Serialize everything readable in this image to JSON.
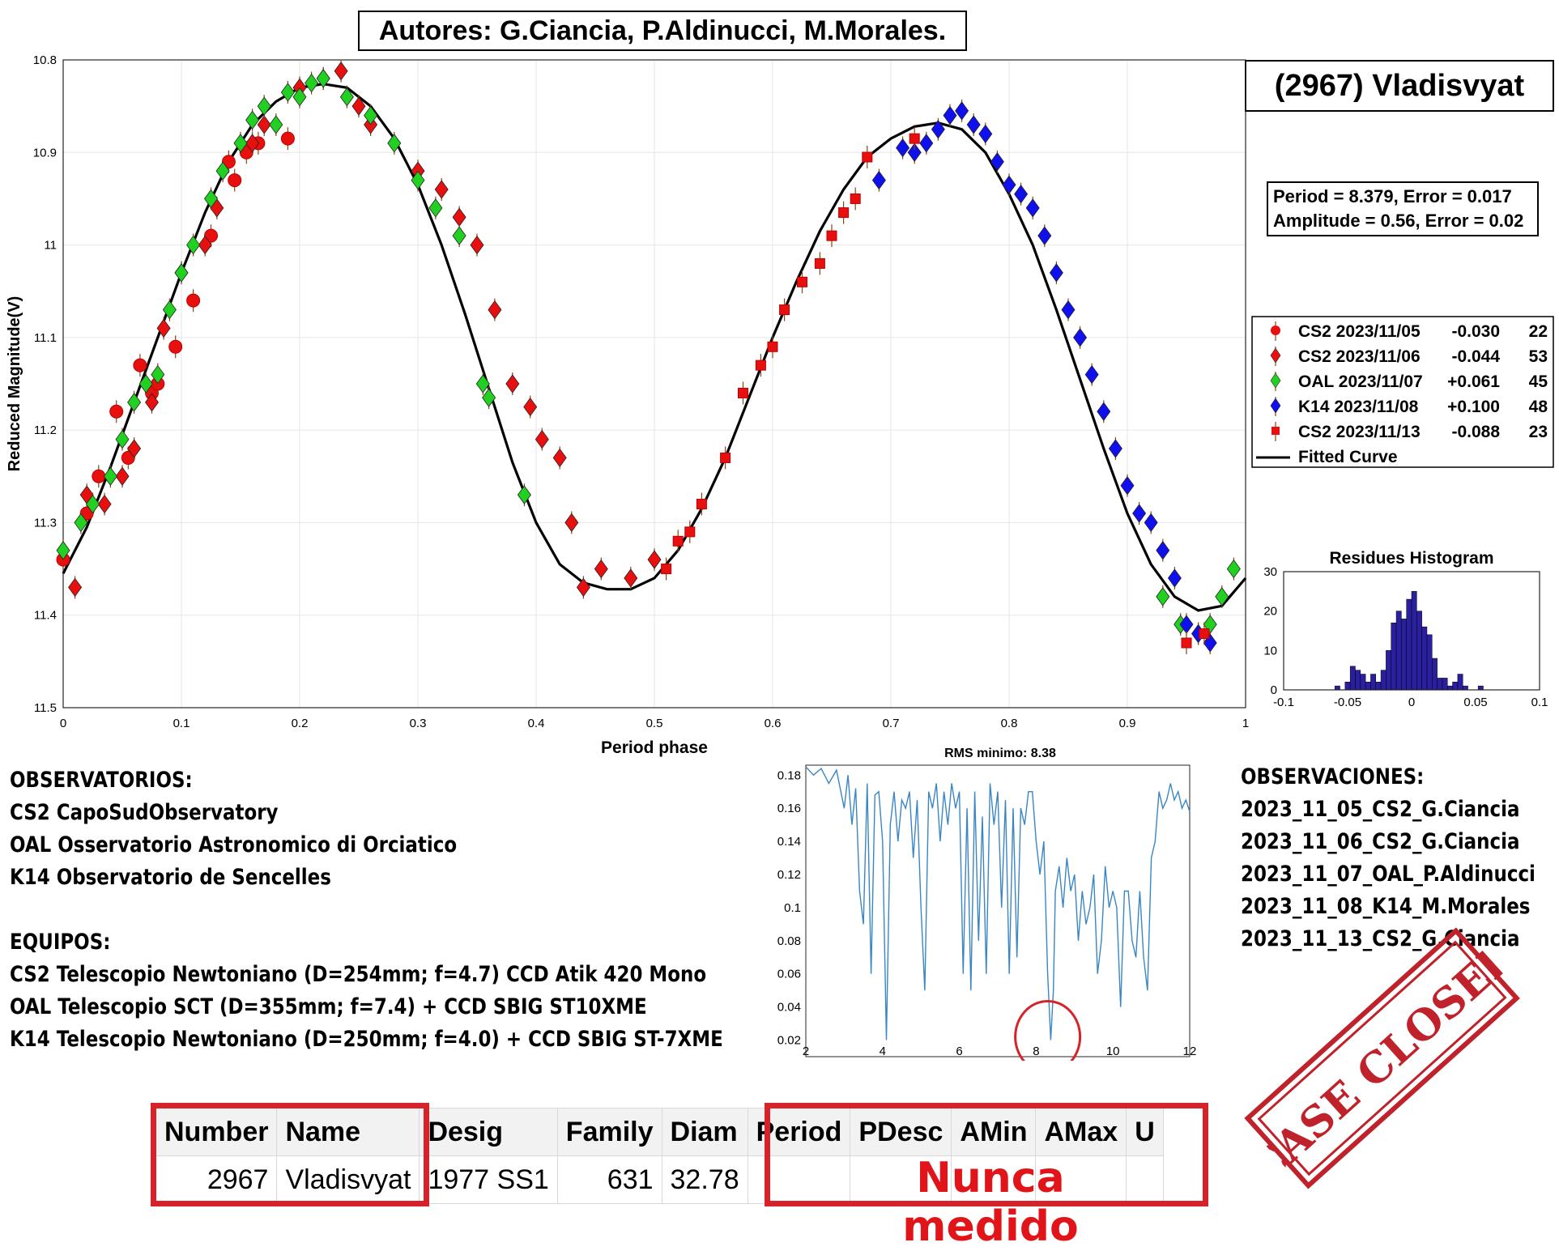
{
  "header": {
    "authors": "Autores: G.Ciancia, P.Aldinucci, M.Morales."
  },
  "asteroid_title": "(2967) Vladisvyat",
  "period_box": {
    "line1": "Period =  8.379, Error = 0.017",
    "line2": "Amplitude = 0.56, Error = 0.02"
  },
  "legend": [
    {
      "name": "CS2 2023/11/05",
      "offset": "-0.030",
      "count": "22",
      "color": "#e8100f",
      "marker": "circle"
    },
    {
      "name": "CS2 2023/11/06",
      "offset": "-0.044",
      "count": "53",
      "color": "#e8100f",
      "marker": "diamond"
    },
    {
      "name": "OAL 2023/11/07",
      "offset": "+0.061",
      "count": "45",
      "color": "#21d021",
      "marker": "diamond"
    },
    {
      "name": "K14 2023/11/08",
      "offset": "+0.100",
      "count": "48",
      "color": "#1010ef",
      "marker": "diamond"
    },
    {
      "name": "CS2 2023/11/13",
      "offset": "-0.088",
      "count": "23",
      "color": "#e8100f",
      "marker": "square"
    },
    {
      "name": "Fitted Curve",
      "offset": "",
      "count": "",
      "color": "#000000",
      "marker": "line"
    }
  ],
  "observatorios": {
    "title": "OBSERVATORIOS:",
    "items": [
      "CS2 CapoSudObservatory",
      "OAL Osservatorio Astronomico di Orciatico",
      "K14 Observatorio de Sencelles"
    ]
  },
  "equipos": {
    "title": "EQUIPOS:",
    "items": [
      "CS2 Telescopio Newtoniano (D=254mm; f=4.7) CCD Atik 420 Mono",
      "OAL Telescopio SCT (D=355mm; f=7.4) + CCD SBIG ST10XME",
      "K14 Telescopio Newtoniano (D=250mm; f=4.0) + CCD SBIG ST-7XME"
    ]
  },
  "observaciones": {
    "title": "OBSERVACIONES:",
    "items": [
      "2023_11_05_CS2_G.Ciancia",
      "2023_11_06_CS2_G.Ciancia",
      "2023_11_07_OAL_P.Aldinucci",
      "2023_11_08_K14_M.Morales",
      "2023_11_13_CS2_G.Ciancia"
    ]
  },
  "mpc_table": {
    "headers": [
      "Number",
      "Name",
      "Desig",
      "Family",
      "Diam",
      "Period",
      "PDesc",
      "AMin",
      "AMax",
      "U"
    ],
    "row": [
      "2967",
      "Vladisvyat",
      "1977 SS1",
      "631",
      "32.78"
    ],
    "never_measured": "Nunca medido"
  },
  "stamp": "CASE CLOSED",
  "colors": {
    "red": "#e8100f",
    "green": "#21d021",
    "blue": "#1010ef",
    "highlight": "#d6232a",
    "histogram": "#2a1f9e",
    "periodogram": "#3a86c4"
  },
  "chart_data": [
    {
      "type": "scatter",
      "title": "",
      "xlabel": "Period phase",
      "ylabel": "Reduced Magnitude(V)",
      "xlim": [
        0,
        1
      ],
      "ylim": [
        11.5,
        10.8
      ],
      "y_inverted": true,
      "xticks": [
        "0",
        "0.1",
        "0.2",
        "0.3",
        "0.4",
        "0.5",
        "0.6",
        "0.7",
        "0.8",
        "0.9",
        "1"
      ],
      "yticks": [
        "10.8",
        "10.9",
        "11",
        "11.1",
        "11.2",
        "11.3",
        "11.4",
        "11.5"
      ],
      "grid": true,
      "legend_position": "right",
      "fitted_curve": {
        "phase": [
          0,
          0.02,
          0.04,
          0.06,
          0.08,
          0.1,
          0.12,
          0.14,
          0.16,
          0.18,
          0.2,
          0.22,
          0.24,
          0.26,
          0.28,
          0.3,
          0.32,
          0.34,
          0.36,
          0.38,
          0.4,
          0.42,
          0.44,
          0.46,
          0.48,
          0.5,
          0.52,
          0.54,
          0.56,
          0.58,
          0.6,
          0.62,
          0.64,
          0.66,
          0.68,
          0.7,
          0.72,
          0.74,
          0.76,
          0.78,
          0.8,
          0.82,
          0.84,
          0.86,
          0.88,
          0.9,
          0.92,
          0.94,
          0.96,
          0.98,
          1
        ],
        "mag": [
          11.355,
          11.305,
          11.24,
          11.17,
          11.1,
          11.03,
          10.965,
          10.91,
          10.87,
          10.845,
          10.83,
          10.826,
          10.83,
          10.85,
          10.885,
          10.935,
          11.0,
          11.075,
          11.155,
          11.235,
          11.3,
          11.345,
          11.365,
          11.372,
          11.372,
          11.36,
          11.33,
          11.285,
          11.23,
          11.165,
          11.1,
          11.04,
          10.985,
          10.94,
          10.905,
          10.885,
          10.872,
          10.868,
          10.875,
          10.9,
          10.945,
          11.0,
          11.07,
          11.145,
          11.22,
          11.29,
          11.345,
          11.38,
          11.395,
          11.39,
          11.36
        ]
      },
      "series": [
        {
          "name": "CS2 2023/11/05",
          "marker": "circle",
          "x": [
            0.0,
            0.02,
            0.03,
            0.045,
            0.055,
            0.065,
            0.075,
            0.08,
            0.095,
            0.11,
            0.125,
            0.14,
            0.145,
            0.155,
            0.165,
            0.19
          ],
          "y": [
            11.34,
            11.29,
            11.25,
            11.18,
            11.23,
            11.13,
            11.16,
            11.15,
            11.11,
            11.06,
            10.99,
            10.91,
            10.93,
            10.9,
            10.89,
            10.885
          ]
        },
        {
          "name": "CS2 2023/11/06",
          "marker": "diamond",
          "x": [
            0.01,
            0.02,
            0.035,
            0.05,
            0.06,
            0.075,
            0.085,
            0.1,
            0.12,
            0.13,
            0.16,
            0.17,
            0.2,
            0.22,
            0.235,
            0.25,
            0.26,
            0.3,
            0.32,
            0.335,
            0.35,
            0.365,
            0.38,
            0.395,
            0.405,
            0.42,
            0.43,
            0.455,
            0.48,
            0.5,
            0.44
          ],
          "y": [
            11.37,
            11.27,
            11.28,
            11.25,
            11.22,
            11.17,
            11.09,
            11.03,
            11.0,
            10.96,
            10.89,
            10.87,
            10.83,
            10.82,
            10.812,
            10.85,
            10.87,
            10.92,
            10.94,
            10.97,
            11.0,
            11.07,
            11.15,
            11.175,
            11.21,
            11.23,
            11.3,
            11.35,
            11.36,
            11.34,
            11.37
          ]
        },
        {
          "name": "OAL 2023/11/07",
          "marker": "diamond",
          "x": [
            0.0,
            0.015,
            0.025,
            0.04,
            0.05,
            0.06,
            0.07,
            0.08,
            0.09,
            0.1,
            0.11,
            0.125,
            0.135,
            0.15,
            0.16,
            0.17,
            0.18,
            0.19,
            0.2,
            0.21,
            0.22,
            0.24,
            0.26,
            0.28,
            0.3,
            0.315,
            0.335,
            0.355,
            0.36,
            0.39,
            0.93,
            0.945,
            0.96,
            0.97,
            0.98,
            0.99
          ],
          "y": [
            11.33,
            11.3,
            11.28,
            11.25,
            11.21,
            11.17,
            11.15,
            11.14,
            11.07,
            11.03,
            11.0,
            10.95,
            10.92,
            10.89,
            10.865,
            10.85,
            10.87,
            10.835,
            10.84,
            10.825,
            10.82,
            10.84,
            10.86,
            10.89,
            10.93,
            10.96,
            10.99,
            11.15,
            11.165,
            11.27,
            11.38,
            11.41,
            11.42,
            11.41,
            11.38,
            11.35
          ]
        },
        {
          "name": "K14 2023/11/08",
          "marker": "diamond",
          "x": [
            0.69,
            0.71,
            0.72,
            0.73,
            0.74,
            0.75,
            0.76,
            0.77,
            0.78,
            0.79,
            0.8,
            0.81,
            0.82,
            0.83,
            0.84,
            0.85,
            0.86,
            0.87,
            0.88,
            0.89,
            0.9,
            0.91,
            0.92,
            0.93,
            0.94,
            0.95,
            0.96,
            0.97
          ],
          "y": [
            10.93,
            10.895,
            10.9,
            10.89,
            10.875,
            10.86,
            10.855,
            10.87,
            10.88,
            10.91,
            10.935,
            10.945,
            10.96,
            10.99,
            11.03,
            11.07,
            11.1,
            11.14,
            11.18,
            11.22,
            11.26,
            11.29,
            11.3,
            11.33,
            11.36,
            11.41,
            11.42,
            11.43
          ]
        },
        {
          "name": "CS2 2023/11/13",
          "marker": "square",
          "x": [
            0.51,
            0.52,
            0.53,
            0.54,
            0.56,
            0.575,
            0.59,
            0.6,
            0.61,
            0.625,
            0.64,
            0.65,
            0.66,
            0.67,
            0.68,
            0.72,
            0.95,
            0.965
          ],
          "y": [
            11.35,
            11.32,
            11.31,
            11.28,
            11.23,
            11.16,
            11.13,
            11.11,
            11.07,
            11.04,
            11.02,
            10.99,
            10.965,
            10.95,
            10.905,
            10.885,
            11.43,
            11.42
          ]
        }
      ]
    },
    {
      "type": "bar",
      "title": "Residues Histogram",
      "xlim": [
        -0.1,
        0.1
      ],
      "ylim": [
        0,
        30
      ],
      "xticks": [
        "-0.1",
        "-0.05",
        "0",
        "0.05",
        "0.1"
      ],
      "yticks": [
        "0",
        "10",
        "20",
        "30"
      ],
      "bin_width": 0.004,
      "bin_centers": [
        -0.058,
        -0.054,
        -0.05,
        -0.046,
        -0.042,
        -0.038,
        -0.034,
        -0.03,
        -0.026,
        -0.022,
        -0.018,
        -0.014,
        -0.01,
        -0.006,
        -0.002,
        0.002,
        0.006,
        0.01,
        0.014,
        0.018,
        0.022,
        0.026,
        0.03,
        0.034,
        0.038,
        0.042,
        0.046,
        0.05,
        0.054,
        0.058
      ],
      "values": [
        1,
        0,
        2,
        6,
        5,
        4,
        2,
        4,
        2,
        5,
        10,
        17,
        20,
        18,
        23,
        25,
        20,
        16,
        14,
        8,
        3,
        3,
        1,
        2,
        4,
        1,
        0,
        0,
        1,
        0
      ]
    },
    {
      "type": "line",
      "title": "RMS minimo: 8.38",
      "xlim": [
        2,
        12
      ],
      "ylim": [
        0.01,
        0.186
      ],
      "xticks": [
        "2",
        "4",
        "6",
        "8",
        "10",
        "12"
      ],
      "yticks": [
        "0.02",
        "0.04",
        "0.06",
        "0.08",
        "0.1",
        "0.12",
        "0.14",
        "0.16",
        "0.18"
      ],
      "x": [
        2.0,
        2.2,
        2.4,
        2.6,
        2.8,
        3.0,
        3.1,
        3.2,
        3.3,
        3.4,
        3.5,
        3.6,
        3.7,
        3.8,
        3.9,
        4.0,
        4.1,
        4.2,
        4.3,
        4.4,
        4.5,
        4.6,
        4.7,
        4.8,
        4.9,
        5.0,
        5.1,
        5.2,
        5.3,
        5.4,
        5.5,
        5.6,
        5.7,
        5.8,
        5.9,
        6.0,
        6.1,
        6.2,
        6.3,
        6.4,
        6.5,
        6.6,
        6.7,
        6.8,
        6.9,
        7.0,
        7.1,
        7.2,
        7.3,
        7.4,
        7.5,
        7.6,
        7.7,
        7.8,
        7.9,
        8.0,
        8.1,
        8.2,
        8.3,
        8.38,
        8.45,
        8.5,
        8.6,
        8.7,
        8.8,
        8.9,
        9.0,
        9.1,
        9.2,
        9.3,
        9.4,
        9.5,
        9.6,
        9.7,
        9.8,
        9.9,
        10.0,
        10.1,
        10.2,
        10.3,
        10.4,
        10.5,
        10.6,
        10.7,
        10.8,
        10.9,
        11.0,
        11.1,
        11.2,
        11.3,
        11.4,
        11.5,
        11.6,
        11.7,
        11.8,
        11.9,
        12.0
      ],
      "y": [
        0.185,
        0.18,
        0.184,
        0.175,
        0.183,
        0.16,
        0.18,
        0.15,
        0.172,
        0.11,
        0.09,
        0.175,
        0.06,
        0.168,
        0.17,
        0.14,
        0.02,
        0.15,
        0.17,
        0.14,
        0.165,
        0.16,
        0.17,
        0.13,
        0.165,
        0.1,
        0.05,
        0.17,
        0.16,
        0.175,
        0.14,
        0.17,
        0.15,
        0.175,
        0.16,
        0.17,
        0.06,
        0.16,
        0.05,
        0.17,
        0.08,
        0.155,
        0.06,
        0.175,
        0.15,
        0.17,
        0.1,
        0.165,
        0.06,
        0.16,
        0.07,
        0.16,
        0.15,
        0.17,
        0.17,
        0.14,
        0.12,
        0.14,
        0.06,
        0.02,
        0.05,
        0.11,
        0.125,
        0.1,
        0.13,
        0.11,
        0.12,
        0.08,
        0.11,
        0.09,
        0.1,
        0.12,
        0.06,
        0.08,
        0.125,
        0.1,
        0.11,
        0.1,
        0.04,
        0.11,
        0.11,
        0.08,
        0.07,
        0.11,
        0.07,
        0.05,
        0.13,
        0.14,
        0.17,
        0.16,
        0.165,
        0.175,
        0.165,
        0.17,
        0.16,
        0.165,
        0.158
      ]
    }
  ]
}
